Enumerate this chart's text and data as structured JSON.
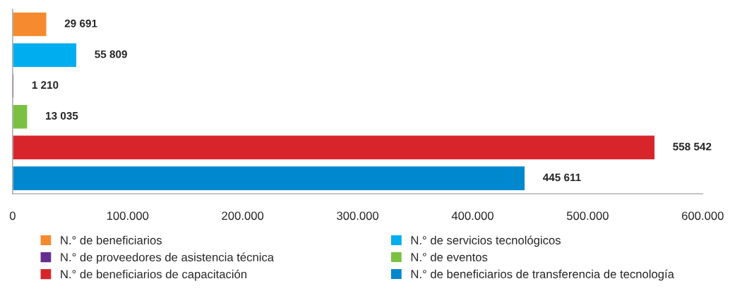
{
  "chart_data": {
    "type": "bar",
    "orientation": "horizontal",
    "categories": [
      null,
      null,
      null,
      null,
      null,
      null
    ],
    "series": [
      {
        "name": "N.° de beneficiarios",
        "color": "#f58a2e",
        "values": [
          29691,
          null,
          null,
          null,
          null,
          null
        ],
        "value_labels": [
          "29 691",
          null,
          null,
          null,
          null,
          null
        ]
      },
      {
        "name": "N.° de servicios tecnológicos",
        "color": "#00aeef",
        "values": [
          null,
          55809,
          null,
          null,
          null,
          null
        ],
        "value_labels": [
          null,
          "55 809",
          null,
          null,
          null,
          null
        ]
      },
      {
        "name": "N.° de proveedores de asistencia técnica",
        "color": "#662d91",
        "values": [
          null,
          null,
          1210,
          null,
          null,
          null
        ],
        "value_labels": [
          null,
          null,
          "1 210",
          null,
          null,
          null
        ]
      },
      {
        "name": "N.° de eventos",
        "color": "#7ac143",
        "values": [
          null,
          null,
          null,
          13035,
          null,
          null
        ],
        "value_labels": [
          null,
          null,
          null,
          "13 035",
          null,
          null
        ]
      },
      {
        "name": "N.° de beneficiarios de capacitación",
        "color": "#d7252b",
        "values": [
          null,
          null,
          null,
          null,
          558542,
          null
        ],
        "value_labels": [
          null,
          null,
          null,
          null,
          "558 542",
          null
        ]
      },
      {
        "name": "N.° de beneficiarios de transferencia de tecnología",
        "color": "#0088cf",
        "values": [
          null,
          null,
          null,
          null,
          null,
          445611
        ],
        "value_labels": [
          null,
          null,
          null,
          null,
          null,
          "445 611"
        ]
      }
    ],
    "xlim": [
      0,
      600000
    ],
    "xticks": [
      0,
      {
        "value": 100000,
        "label": "100.000"
      },
      {
        "value": 200000,
        "label": "200.000"
      },
      {
        "value": 300000,
        "label": "300.000"
      },
      {
        "value": 400000,
        "label": "400.000"
      },
      {
        "value": 500000,
        "label": "500.000"
      },
      {
        "value": 600000,
        "label": "600.000"
      }
    ],
    "grid": false,
    "legend": "bottom"
  }
}
